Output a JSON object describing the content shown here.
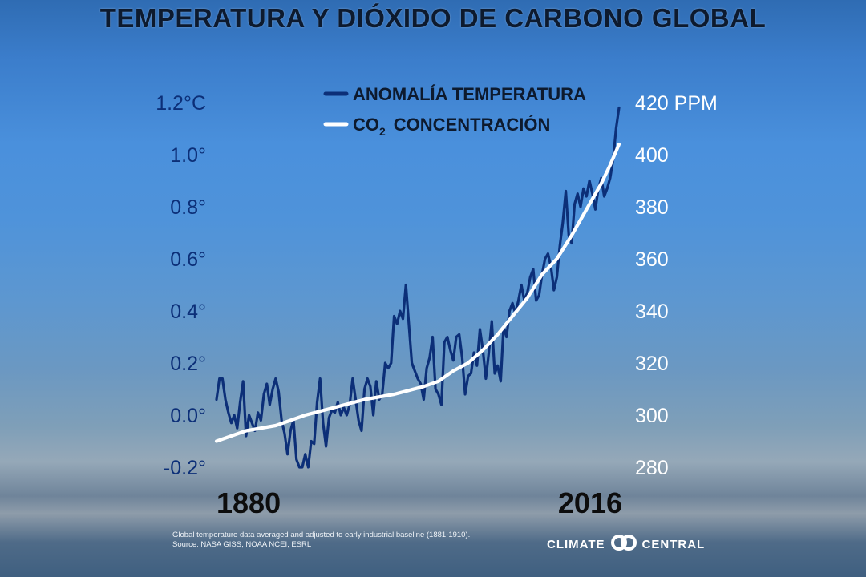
{
  "title": "TEMPERATURA Y DIÓXIDO DE CARBONO GLOBAL",
  "legend": {
    "temperature": "ANOMALÍA TEMPERATURA",
    "co2_prefix": "CO",
    "co2_subscript": "2",
    "co2_suffix": "CONCENTRACIÓN"
  },
  "colors": {
    "temperature": "#0c2f78",
    "co2": "#ffffff"
  },
  "footnote": {
    "line1": "Global temperature data averaged and adjusted to early industrial baseline (1881-1910).",
    "line2": "Source: NASA GISS, NOAA NCEI, ESRL"
  },
  "brand": {
    "left": "CLIMATE",
    "right": "CENTRAL",
    "logo_icon": "linked-circles-icon"
  },
  "chart_data": {
    "type": "line",
    "x_tick_labels": [
      "1880",
      "2016"
    ],
    "xlim": [
      1880,
      2016
    ],
    "left_axis": {
      "ticks": [
        "1.2°C",
        "1.0°",
        "0.8°",
        "0.6°",
        "0.4°",
        "0.2°",
        "0.0°",
        "-0.2°"
      ],
      "ylim": [
        -0.2,
        1.2
      ]
    },
    "right_axis": {
      "ticks": [
        "420 PPM",
        "400",
        "380",
        "360",
        "340",
        "320",
        "300",
        "280"
      ],
      "ylim": [
        280,
        420
      ]
    },
    "series": [
      {
        "name": "ANOMALÍA TEMPERATURA",
        "axis": "left",
        "x": [
          1880,
          1881,
          1882,
          1883,
          1884,
          1885,
          1886,
          1887,
          1888,
          1889,
          1890,
          1891,
          1892,
          1893,
          1894,
          1895,
          1896,
          1897,
          1898,
          1899,
          1900,
          1901,
          1902,
          1903,
          1904,
          1905,
          1906,
          1907,
          1908,
          1909,
          1910,
          1911,
          1912,
          1913,
          1914,
          1915,
          1916,
          1917,
          1918,
          1919,
          1920,
          1921,
          1922,
          1923,
          1924,
          1925,
          1926,
          1927,
          1928,
          1929,
          1930,
          1931,
          1932,
          1933,
          1934,
          1935,
          1936,
          1937,
          1938,
          1939,
          1940,
          1941,
          1942,
          1943,
          1944,
          1945,
          1946,
          1947,
          1948,
          1949,
          1950,
          1951,
          1952,
          1953,
          1954,
          1955,
          1956,
          1957,
          1958,
          1959,
          1960,
          1961,
          1962,
          1963,
          1964,
          1965,
          1966,
          1967,
          1968,
          1969,
          1970,
          1971,
          1972,
          1973,
          1974,
          1975,
          1976,
          1977,
          1978,
          1979,
          1980,
          1981,
          1982,
          1983,
          1984,
          1985,
          1986,
          1987,
          1988,
          1989,
          1990,
          1991,
          1992,
          1993,
          1994,
          1995,
          1996,
          1997,
          1998,
          1999,
          2000,
          2001,
          2002,
          2003,
          2004,
          2005,
          2006,
          2007,
          2008,
          2009,
          2010,
          2011,
          2012,
          2013,
          2014,
          2015,
          2016
        ],
        "values": [
          0.06,
          0.14,
          0.14,
          0.06,
          0.01,
          -0.03,
          0.0,
          -0.05,
          0.05,
          0.13,
          -0.08,
          0.0,
          -0.03,
          -0.06,
          0.01,
          -0.02,
          0.08,
          0.12,
          0.04,
          0.1,
          0.14,
          0.09,
          -0.02,
          -0.07,
          -0.15,
          -0.06,
          -0.02,
          -0.17,
          -0.2,
          -0.2,
          -0.15,
          -0.2,
          -0.1,
          -0.11,
          0.05,
          0.14,
          -0.03,
          -0.12,
          -0.01,
          0.02,
          0.01,
          0.05,
          0.0,
          0.03,
          0.0,
          0.04,
          0.14,
          0.06,
          -0.02,
          -0.06,
          0.1,
          0.14,
          0.11,
          0.0,
          0.13,
          0.06,
          0.08,
          0.2,
          0.18,
          0.2,
          0.38,
          0.35,
          0.4,
          0.37,
          0.5,
          0.35,
          0.2,
          0.17,
          0.14,
          0.12,
          0.06,
          0.18,
          0.22,
          0.3,
          0.1,
          0.08,
          0.04,
          0.28,
          0.3,
          0.25,
          0.21,
          0.3,
          0.31,
          0.22,
          0.08,
          0.15,
          0.16,
          0.24,
          0.19,
          0.33,
          0.25,
          0.14,
          0.24,
          0.36,
          0.16,
          0.19,
          0.13,
          0.34,
          0.3,
          0.4,
          0.43,
          0.39,
          0.44,
          0.5,
          0.44,
          0.47,
          0.53,
          0.56,
          0.44,
          0.46,
          0.54,
          0.6,
          0.62,
          0.57,
          0.48,
          0.53,
          0.65,
          0.74,
          0.86,
          0.69,
          0.66,
          0.81,
          0.85,
          0.8,
          0.87,
          0.84,
          0.9,
          0.85,
          0.79,
          0.87,
          0.91,
          0.84,
          0.87,
          0.91,
          0.98,
          1.1,
          1.18
        ]
      },
      {
        "name": "CO₂ CONCENTRACIÓN",
        "axis": "right",
        "x": [
          1880,
          1890,
          1900,
          1910,
          1920,
          1930,
          1940,
          1950,
          1955,
          1960,
          1965,
          1970,
          1975,
          1980,
          1985,
          1990,
          1995,
          2000,
          2005,
          2010,
          2013,
          2016
        ],
        "values": [
          290,
          294,
          296,
          300,
          303,
          306,
          308,
          311,
          313,
          317,
          320,
          325,
          331,
          338,
          345,
          354,
          360,
          369,
          379,
          389,
          396,
          404
        ]
      }
    ]
  }
}
